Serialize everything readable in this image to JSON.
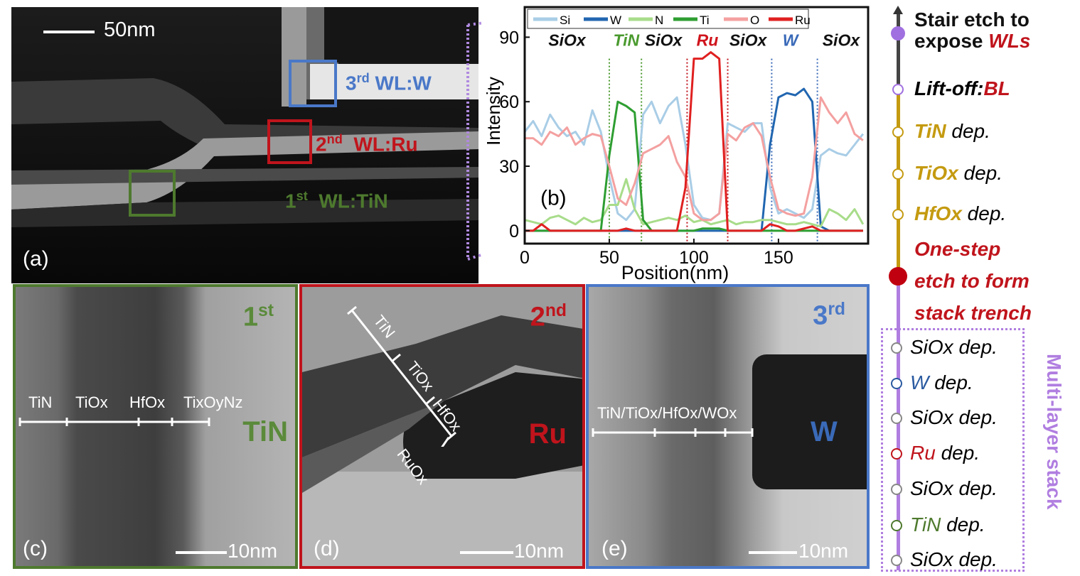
{
  "panel_a": {
    "label": "(a)",
    "scale_bar": "50nm",
    "wl3": {
      "ord": "3",
      "sup": "rd",
      "name": "WL:W",
      "color": "#4a78c8"
    },
    "wl2": {
      "ord": "2",
      "sup": "nd",
      "name": "WL:Ru",
      "color": "#c0141c"
    },
    "wl1": {
      "ord": "1",
      "sup": "st",
      "name": "WL:TiN",
      "color": "#4e7a2e"
    }
  },
  "chart_data": {
    "type": "line",
    "panel_label": "(b)",
    "xlabel": "Position(nm)",
    "ylabel": "Intensity",
    "xlim": [
      0,
      203
    ],
    "ylim": [
      -6,
      104
    ],
    "xticks": [
      0,
      50,
      100,
      150
    ],
    "yticks": [
      0,
      30,
      60,
      90
    ],
    "legend_position": "top",
    "region_labels": [
      {
        "text": "SiOx",
        "x": 25,
        "color": "#111"
      },
      {
        "text": "TiN",
        "x": 60,
        "color": "#4a9a2e"
      },
      {
        "text": "SiOx",
        "x": 82,
        "color": "#111"
      },
      {
        "text": "Ru",
        "x": 108,
        "color": "#d0141c"
      },
      {
        "text": "SiOx",
        "x": 132,
        "color": "#111"
      },
      {
        "text": "W",
        "x": 157,
        "color": "#3a6ab8"
      },
      {
        "text": "SiOx",
        "x": 187,
        "color": "#111"
      }
    ],
    "boundaries": [
      {
        "x": 50,
        "color": "#4a9a2e"
      },
      {
        "x": 69,
        "color": "#4a9a2e"
      },
      {
        "x": 96,
        "color": "#c0141c"
      },
      {
        "x": 120,
        "color": "#c0141c"
      },
      {
        "x": 146,
        "color": "#3a6ab8"
      },
      {
        "x": 173,
        "color": "#3a6ab8"
      }
    ],
    "x": [
      0,
      5,
      10,
      15,
      20,
      25,
      30,
      35,
      40,
      45,
      50,
      55,
      60,
      65,
      70,
      75,
      80,
      85,
      90,
      95,
      100,
      105,
      110,
      115,
      120,
      125,
      130,
      135,
      140,
      145,
      150,
      155,
      160,
      165,
      170,
      175,
      180,
      185,
      190,
      195,
      200
    ],
    "series": [
      {
        "name": "Si",
        "color": "#a9cde6",
        "values": [
          46,
          51,
          44,
          54,
          48,
          44,
          46,
          40,
          56,
          46,
          25,
          8,
          5,
          10,
          54,
          60,
          50,
          58,
          62,
          40,
          12,
          6,
          5,
          8,
          50,
          48,
          46,
          50,
          50,
          20,
          8,
          10,
          8,
          6,
          10,
          35,
          38,
          36,
          35,
          40,
          45
        ]
      },
      {
        "name": "W",
        "color": "#2166b0",
        "values": [
          0,
          0,
          0,
          0,
          0,
          0,
          0,
          0,
          0,
          0,
          0,
          0,
          0,
          0,
          0,
          0,
          0,
          0,
          0,
          0,
          0,
          0,
          0,
          0,
          0,
          0,
          0,
          0,
          0,
          40,
          62,
          64,
          63,
          66,
          60,
          2,
          0,
          0,
          0,
          0,
          0
        ]
      },
      {
        "name": "N",
        "color": "#a8dc8a",
        "values": [
          5,
          4,
          3,
          6,
          7,
          5,
          3,
          6,
          4,
          5,
          12,
          12,
          24,
          10,
          3,
          4,
          5,
          6,
          5,
          7,
          4,
          5,
          3,
          4,
          5,
          3,
          4,
          4,
          5,
          5,
          4,
          3,
          3,
          4,
          3,
          2,
          10,
          8,
          5,
          10,
          3
        ]
      },
      {
        "name": "Ti",
        "color": "#2e9e32",
        "values": [
          0,
          0,
          0,
          0,
          0,
          0,
          0,
          0,
          0,
          0,
          35,
          60,
          58,
          55,
          5,
          0,
          0,
          0,
          0,
          0,
          0,
          1,
          1,
          1,
          0,
          0,
          0,
          0,
          0,
          0,
          0,
          0,
          0,
          0,
          0,
          0,
          0,
          0,
          0,
          0,
          0
        ]
      },
      {
        "name": "O",
        "color": "#f4a0a0",
        "values": [
          43,
          43,
          40,
          46,
          44,
          48,
          40,
          43,
          45,
          44,
          30,
          15,
          12,
          22,
          36,
          38,
          40,
          44,
          32,
          25,
          8,
          5,
          5,
          8,
          45,
          42,
          48,
          50,
          44,
          25,
          10,
          8,
          7,
          8,
          25,
          62,
          55,
          50,
          55,
          45,
          42
        ]
      },
      {
        "name": "Ru",
        "color": "#e02020",
        "values": [
          0,
          0,
          3,
          0,
          0,
          0,
          0,
          0,
          0,
          0,
          0,
          0,
          1,
          0,
          0,
          0,
          0,
          0,
          0,
          20,
          80,
          80,
          83,
          80,
          0,
          0,
          0,
          0,
          0,
          3,
          2,
          0,
          0,
          1,
          2,
          0,
          0,
          0,
          0,
          0,
          0
        ]
      }
    ]
  },
  "panel_c": {
    "label": "(c)",
    "ordinal": "1",
    "sup": "st",
    "material": "TiN",
    "scale_bar": "10nm",
    "layers": [
      "TiN",
      "TiOx",
      "HfOx",
      "TixOyNz"
    ]
  },
  "panel_d": {
    "label": "(d)",
    "ordinal": "2",
    "sup": "nd",
    "material": "Ru",
    "scale_bar": "10nm",
    "layers": [
      "TiN",
      "TiOx",
      "HfOx",
      "RuOx"
    ]
  },
  "panel_e": {
    "label": "(e)",
    "ordinal": "3",
    "sup": "rd",
    "material": "W",
    "scale_bar": "10nm",
    "layers": "TiN/TiOx/HfOx/WOx"
  },
  "flow": {
    "steps": [
      {
        "a": "Stair etch to",
        "b": "expose ",
        "c": "WLs"
      },
      {
        "a": "Lift-off:",
        "c": "BL"
      },
      {
        "m": "TiN",
        "d": " dep."
      },
      {
        "m": "TiOx",
        "d": " dep."
      },
      {
        "m": "HfOx",
        "d": " dep."
      },
      {
        "l1": "One-step",
        "l2": "etch to form",
        "l3": "stack trench"
      },
      {
        "m": "SiOx",
        "d": " dep."
      },
      {
        "m": "W",
        "d": " dep."
      },
      {
        "m": "SiOx",
        "d": " dep."
      },
      {
        "m": "Ru",
        "d": " dep."
      },
      {
        "m": "SiOx",
        "d": " dep."
      },
      {
        "m": "TiN",
        "d": " dep."
      },
      {
        "m": "SiOx",
        "d": " dep."
      }
    ],
    "group_label": "Multi-layer stack"
  }
}
